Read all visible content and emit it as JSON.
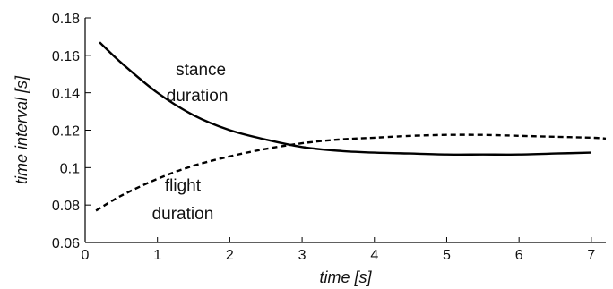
{
  "chart_data": {
    "type": "line",
    "title": "",
    "xlabel": "time [s]",
    "ylabel": "time interval  [s]",
    "xlim": [
      0,
      7.2
    ],
    "ylim": [
      0.06,
      0.18
    ],
    "xticks": [
      0,
      1,
      2,
      3,
      4,
      5,
      6,
      7
    ],
    "yticks": [
      0.06,
      0.08,
      0.1,
      0.12,
      0.14,
      0.16,
      0.18
    ],
    "xtick_labels": [
      "0",
      "1",
      "2",
      "3",
      "4",
      "5",
      "6",
      "7"
    ],
    "ytick_labels": [
      "0.06",
      "0.08",
      "0.1",
      "0.12",
      "0.14",
      "0.16",
      "0.18"
    ],
    "grid": false,
    "legend": "none",
    "series": [
      {
        "style": "solid",
        "color": "#000000",
        "x": [
          0.2,
          0.5,
          1.0,
          1.5,
          2.0,
          2.5,
          3.0,
          3.5,
          4.0,
          4.5,
          5.0,
          5.5,
          6.0,
          6.5,
          7.0
        ],
        "y": [
          0.167,
          0.156,
          0.14,
          0.128,
          0.12,
          0.115,
          0.111,
          0.109,
          0.108,
          0.1075,
          0.107,
          0.107,
          0.107,
          0.1075,
          0.108
        ]
      },
      {
        "style": "dashed",
        "color": "#000000",
        "x": [
          0.15,
          0.5,
          1.0,
          1.5,
          2.0,
          2.5,
          3.0,
          3.5,
          4.0,
          4.5,
          5.0,
          5.5,
          6.0,
          6.5,
          7.0,
          7.2
        ],
        "y": [
          0.077,
          0.085,
          0.094,
          0.101,
          0.106,
          0.11,
          0.113,
          0.115,
          0.116,
          0.117,
          0.1175,
          0.1175,
          0.117,
          0.1165,
          0.116,
          0.1155
        ]
      }
    ],
    "annotations": [
      {
        "text": "stance",
        "x": 1.6,
        "y": 0.1495
      },
      {
        "text": "duration",
        "x": 1.55,
        "y": 0.1355
      },
      {
        "text": "flight",
        "x": 1.35,
        "y": 0.0875
      },
      {
        "text": "duration",
        "x": 1.35,
        "y": 0.0725
      }
    ]
  }
}
